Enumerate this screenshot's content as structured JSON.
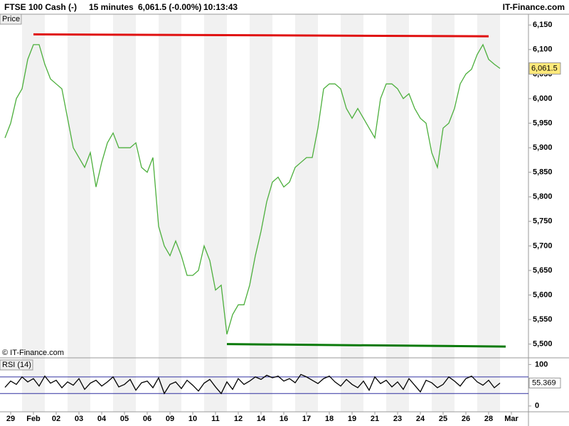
{
  "header": {
    "title": "FTSE 100 Cash (-)",
    "interval": "15 minutes",
    "quote": "6,061.5 (-0.00%)",
    "time": "10:13:43",
    "brand": "IT-Finance.com"
  },
  "chart_data": [
    {
      "type": "line",
      "title": "Price",
      "copyright": "© IT-Finance.com",
      "color": "#4caf3c",
      "categories": [
        null,
        "29",
        null,
        null,
        null,
        "Feb",
        null,
        null,
        null,
        "02",
        null,
        null,
        null,
        "03",
        null,
        null,
        null,
        "04",
        null,
        null,
        null,
        "05",
        null,
        null,
        null,
        "06",
        null,
        null,
        null,
        "09",
        null,
        null,
        null,
        "10",
        null,
        null,
        null,
        "11",
        null,
        null,
        null,
        "12",
        null,
        null,
        null,
        "14",
        null,
        null,
        null,
        "16",
        null,
        null,
        null,
        "17",
        null,
        null,
        null,
        "18",
        null,
        null,
        null,
        "19",
        null,
        null,
        null,
        "21",
        null,
        null,
        null,
        "23",
        null,
        null,
        null,
        "24",
        null,
        null,
        null,
        "25",
        null,
        null,
        null,
        "26",
        null,
        null,
        null,
        "28",
        null,
        null,
        null,
        "Mar"
      ],
      "values": [
        5920,
        5950,
        6000,
        6020,
        6080,
        6110,
        6110,
        6070,
        6040,
        6030,
        6020,
        5960,
        5900,
        5880,
        5860,
        5890,
        5820,
        5870,
        5910,
        5930,
        5900,
        5900,
        5900,
        5910,
        5860,
        5850,
        5880,
        5740,
        5700,
        5680,
        5710,
        5680,
        5640,
        5640,
        5650,
        5700,
        5670,
        5610,
        5620,
        5520,
        5560,
        5580,
        5580,
        5620,
        5680,
        5730,
        5790,
        5830,
        5840,
        5820,
        5830,
        5860,
        5870,
        5880,
        5880,
        5940,
        6020,
        6030,
        6030,
        6020,
        5980,
        5960,
        5980,
        5960,
        5940,
        5920,
        6000,
        6030,
        6030,
        6020,
        6000,
        6010,
        5980,
        5960,
        5950,
        5890,
        5860,
        5940,
        5950,
        5980,
        6030,
        6050,
        6060,
        6090,
        6110,
        6080,
        6070,
        6061.5,
        null,
        null
      ],
      "last": {
        "value": 6061.5,
        "label": "6,061.5"
      },
      "ylim": [
        5472,
        6172
      ],
      "yticks": [
        {
          "value": 5500,
          "label": "5,500"
        },
        {
          "value": 5550,
          "label": "5,550"
        },
        {
          "value": 5600,
          "label": "5,600"
        },
        {
          "value": 5650,
          "label": "5,650"
        },
        {
          "value": 5700,
          "label": "5,700"
        },
        {
          "value": 5750,
          "label": "5,750"
        },
        {
          "value": 5800,
          "label": "5,800"
        },
        {
          "value": 5850,
          "label": "5,850"
        },
        {
          "value": 5900,
          "label": "5,900"
        },
        {
          "value": 5950,
          "label": "5,950"
        },
        {
          "value": 6000,
          "label": "6,000"
        },
        {
          "value": 6050,
          "label": "6,050"
        },
        {
          "value": 6100,
          "label": "6,100"
        },
        {
          "value": 6150,
          "label": "6,150"
        }
      ],
      "trendlines": [
        {
          "color": "#e01010",
          "x": [
            5,
            85
          ],
          "values": [
            6131,
            6127
          ]
        },
        {
          "color": "#0a7a0a",
          "x": [
            39,
            88
          ],
          "values": [
            5500,
            5495
          ]
        }
      ]
    },
    {
      "type": "line",
      "title": "RSI (14)",
      "color": "#000000",
      "values": [
        45,
        60,
        52,
        70,
        58,
        66,
        48,
        72,
        55,
        62,
        44,
        58,
        50,
        66,
        40,
        55,
        62,
        48,
        58,
        70,
        46,
        52,
        64,
        38,
        56,
        60,
        44,
        68,
        30,
        52,
        58,
        42,
        62,
        50,
        36,
        55,
        64,
        46,
        30,
        58,
        40,
        66,
        52,
        60,
        70,
        64,
        74,
        68,
        72,
        60,
        66,
        56,
        76,
        70,
        62,
        54,
        66,
        72,
        58,
        48,
        64,
        52,
        44,
        60,
        38,
        70,
        54,
        62,
        46,
        58,
        40,
        66,
        50,
        34,
        62,
        56,
        44,
        52,
        70,
        60,
        48,
        66,
        72,
        58,
        50,
        62,
        44,
        55.369,
        null,
        null
      ],
      "last": 55.369,
      "ylim": [
        -14,
        116
      ],
      "yticks": [
        0,
        100
      ],
      "levels": [
        30,
        70
      ],
      "level_color": "#3030a0"
    }
  ]
}
